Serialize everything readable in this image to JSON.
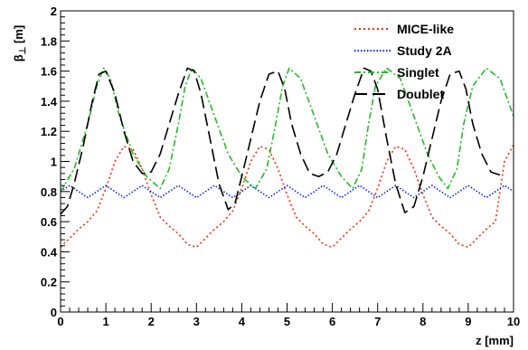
{
  "chart_data": {
    "type": "line",
    "xlabel": "z [mm]",
    "ylabel_main": "β",
    "ylabel_sub": "⊥",
    "ylabel_unit": " [m]",
    "xlim": [
      0,
      10
    ],
    "ylim": [
      0,
      2
    ],
    "x_ticks": [
      "0",
      "1",
      "2",
      "3",
      "4",
      "5",
      "6",
      "7",
      "8",
      "9",
      "10"
    ],
    "y_ticks": [
      "0",
      "0.2",
      "0.4",
      "0.6",
      "0.8",
      "1",
      "1.2",
      "1.4",
      "1.6",
      "1.8",
      "2"
    ],
    "grid": false,
    "legend_position": "top-right",
    "series": [
      {
        "name": "MICE-like",
        "color": "#ff2a00",
        "dash": "dotted",
        "x": [
          0,
          0.2,
          0.4,
          0.6,
          0.8,
          1.0,
          1.2,
          1.4,
          1.6,
          1.8,
          2.0,
          2.2,
          2.4,
          2.6,
          2.8,
          3.0,
          3.2,
          3.4,
          3.6,
          3.8,
          4.0,
          4.2,
          4.4,
          4.6,
          4.8,
          5.0,
          5.2,
          5.4,
          5.6,
          5.8,
          6.0,
          6.2,
          6.4,
          6.6,
          6.8,
          7.0,
          7.2,
          7.4,
          7.6,
          7.8,
          8.0,
          8.2,
          8.4,
          8.6,
          8.8,
          9.0,
          9.2,
          9.4,
          9.6,
          9.8,
          10.0
        ],
        "y": [
          0.43,
          0.49,
          0.55,
          0.6,
          0.67,
          0.82,
          1.0,
          1.1,
          1.08,
          0.95,
          0.78,
          0.63,
          0.57,
          0.52,
          0.45,
          0.43,
          0.49,
          0.55,
          0.6,
          0.67,
          0.82,
          1.0,
          1.1,
          1.08,
          0.95,
          0.78,
          0.63,
          0.57,
          0.52,
          0.45,
          0.43,
          0.49,
          0.55,
          0.6,
          0.67,
          0.82,
          1.0,
          1.1,
          1.08,
          0.95,
          0.78,
          0.63,
          0.57,
          0.52,
          0.45,
          0.43,
          0.49,
          0.55,
          0.6,
          1.0,
          1.11
        ]
      },
      {
        "name": "Study 2A",
        "color": "#0022ee",
        "dash": "dotted-fine",
        "x": [
          0,
          0.2,
          0.4,
          0.6,
          0.8,
          1.0,
          1.2,
          1.4,
          1.6,
          1.8,
          2.0,
          2.2,
          2.4,
          2.6,
          2.8,
          3.0,
          3.2,
          3.4,
          3.6,
          3.8,
          4.0,
          4.2,
          4.4,
          4.6,
          4.8,
          5.0,
          5.2,
          5.4,
          5.6,
          5.8,
          6.0,
          6.2,
          6.4,
          6.6,
          6.8,
          7.0,
          7.2,
          7.4,
          7.6,
          7.8,
          8.0,
          8.2,
          8.4,
          8.6,
          8.8,
          9.0,
          9.2,
          9.4,
          9.6,
          9.8,
          10.0
        ],
        "y": [
          0.8,
          0.84,
          0.8,
          0.76,
          0.8,
          0.84,
          0.8,
          0.76,
          0.8,
          0.84,
          0.8,
          0.76,
          0.8,
          0.84,
          0.8,
          0.76,
          0.8,
          0.84,
          0.8,
          0.76,
          0.8,
          0.84,
          0.8,
          0.76,
          0.8,
          0.84,
          0.8,
          0.76,
          0.8,
          0.84,
          0.8,
          0.76,
          0.8,
          0.84,
          0.8,
          0.76,
          0.8,
          0.84,
          0.8,
          0.76,
          0.8,
          0.84,
          0.8,
          0.76,
          0.8,
          0.84,
          0.8,
          0.76,
          0.8,
          0.84,
          0.8
        ]
      },
      {
        "name": "Singlet",
        "color": "#22bb22",
        "dash": "dashdot",
        "x": [
          0,
          0.3,
          0.6,
          0.8,
          0.95,
          1.1,
          1.3,
          1.6,
          1.9,
          2.2,
          2.4,
          2.6,
          2.75,
          2.9,
          3.1,
          3.4,
          3.7,
          4.0,
          4.3,
          4.55,
          4.75,
          4.9,
          5.05,
          5.3,
          5.6,
          5.9,
          6.2,
          6.45,
          6.65,
          6.8,
          6.95,
          7.2,
          7.5,
          7.8,
          8.1,
          8.35,
          8.55,
          8.75,
          8.9,
          9.1,
          9.4,
          9.7,
          10.0
        ],
        "y": [
          0.8,
          0.95,
          1.25,
          1.5,
          1.62,
          1.55,
          1.3,
          1.05,
          0.9,
          0.82,
          0.95,
          1.25,
          1.5,
          1.62,
          1.55,
          1.3,
          1.05,
          0.9,
          0.82,
          0.95,
          1.25,
          1.5,
          1.62,
          1.55,
          1.3,
          1.05,
          0.9,
          0.82,
          0.95,
          1.25,
          1.5,
          1.62,
          1.55,
          1.3,
          1.05,
          0.9,
          0.82,
          0.95,
          1.25,
          1.5,
          1.62,
          1.55,
          1.3
        ]
      },
      {
        "name": "Doublet",
        "color": "#000000",
        "dash": "longdash",
        "x": [
          0,
          0.15,
          0.3,
          0.5,
          0.7,
          0.85,
          1.0,
          1.2,
          1.4,
          1.6,
          1.8,
          2.0,
          2.2,
          2.4,
          2.6,
          2.8,
          2.95,
          3.1,
          3.3,
          3.5,
          3.7,
          3.85,
          4.0,
          4.2,
          4.4,
          4.6,
          4.8,
          4.95,
          5.1,
          5.3,
          5.5,
          5.7,
          5.9,
          6.1,
          6.3,
          6.5,
          6.7,
          6.85,
          7.0,
          7.2,
          7.4,
          7.6,
          7.8,
          8.0,
          8.2,
          8.4,
          8.6,
          8.8,
          8.95,
          9.1,
          9.3,
          9.5,
          9.7
        ],
        "y": [
          0.65,
          0.7,
          0.85,
          1.1,
          1.4,
          1.58,
          1.6,
          1.45,
          1.2,
          1.0,
          0.92,
          0.93,
          1.05,
          1.25,
          1.45,
          1.62,
          1.6,
          1.45,
          1.15,
          0.85,
          0.68,
          0.72,
          0.9,
          1.15,
          1.4,
          1.58,
          1.6,
          1.48,
          1.25,
          1.05,
          0.92,
          0.9,
          0.93,
          1.05,
          1.25,
          1.45,
          1.62,
          1.6,
          1.48,
          1.15,
          0.85,
          0.66,
          0.7,
          0.9,
          1.15,
          1.4,
          1.58,
          1.6,
          1.48,
          1.25,
          1.05,
          0.93,
          0.91
        ]
      }
    ]
  }
}
